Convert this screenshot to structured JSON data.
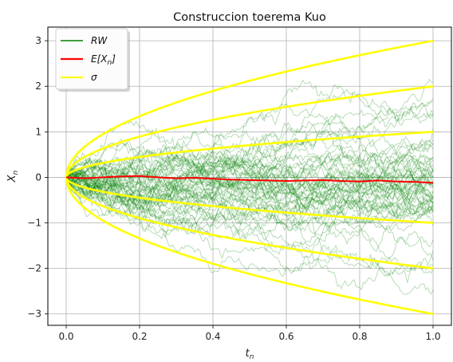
{
  "chart_data": {
    "type": "line",
    "title": "Construccion toerema Kuo",
    "xlabel": "t",
    "xlabel_sub": "n",
    "ylabel": "X",
    "ylabel_sub": "n",
    "xlim": [
      -0.05,
      1.05
    ],
    "ylim": [
      -3.25,
      3.3
    ],
    "xticks": [
      0.0,
      0.2,
      0.4,
      0.6,
      0.8,
      1.0
    ],
    "xtick_labels": [
      "0.0",
      "0.2",
      "0.4",
      "0.6",
      "0.8",
      "1.0"
    ],
    "yticks": [
      -3,
      -2,
      -1,
      0,
      1,
      2,
      3
    ],
    "ytick_labels": [
      "−3",
      "−2",
      "−1",
      "0",
      "1",
      "2",
      "3"
    ],
    "grid": true,
    "legend_position": "top-left",
    "colors": {
      "rw": "#008000",
      "mean": "#ff0000",
      "sigma": "#ffff00"
    },
    "random_walks": {
      "count": 60,
      "steps": 200,
      "scale": 1.0
    },
    "series": [
      {
        "name": "RW",
        "legend_label": "RW",
        "color": "#008000",
        "description": "simulated random walks"
      },
      {
        "name": "E[X_n]",
        "legend_label": "E[X",
        "legend_sub": "n",
        "legend_suffix": "]",
        "color": "#ff0000",
        "x": [
          0.0,
          0.05,
          0.1,
          0.15,
          0.2,
          0.25,
          0.3,
          0.35,
          0.4,
          0.45,
          0.5,
          0.55,
          0.6,
          0.65,
          0.7,
          0.75,
          0.8,
          0.85,
          0.9,
          0.95,
          1.0
        ],
        "y": [
          0.0,
          -0.02,
          0.0,
          0.02,
          0.03,
          0.0,
          -0.02,
          -0.01,
          -0.03,
          -0.05,
          -0.06,
          -0.07,
          -0.08,
          -0.07,
          -0.06,
          -0.08,
          -0.09,
          -0.07,
          -0.09,
          -0.1,
          -0.12
        ]
      },
      {
        "name": "sigma",
        "legend_label": "σ",
        "color": "#ffff00",
        "multiples": [
          1,
          2,
          3
        ],
        "formula": "±k·sqrt(t)"
      }
    ]
  }
}
